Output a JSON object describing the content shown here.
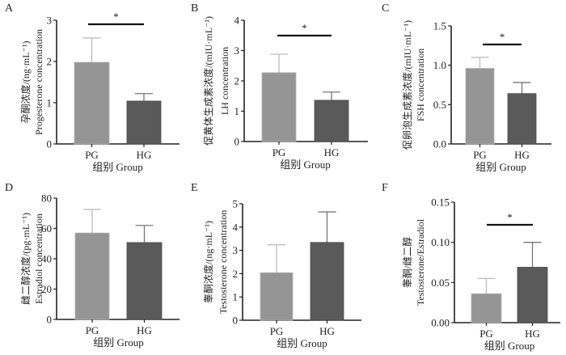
{
  "colors": {
    "PG": "#959595",
    "HG": "#5a5a5a",
    "axis": "#222222",
    "error_PG": "#bdbdbd",
    "error_HG": "#777777"
  },
  "chart_data": [
    {
      "panel": "A",
      "type": "bar",
      "categories": [
        "PG",
        "HG"
      ],
      "values": [
        1.98,
        1.04
      ],
      "errors_upper": [
        2.57,
        1.22
      ],
      "ylabel_cn": "孕酮浓度/(ng·mL⁻¹)",
      "ylabel_en": "Progesterone concentration",
      "xlabel": "组别 Group",
      "ylim": [
        0,
        3
      ],
      "yticks": [
        "0",
        "1",
        "2",
        "3"
      ],
      "significance": "*"
    },
    {
      "panel": "B",
      "type": "bar",
      "categories": [
        "PG",
        "HG"
      ],
      "values": [
        2.27,
        1.36
      ],
      "errors_upper": [
        2.88,
        1.63
      ],
      "ylabel_cn": "促黄体生成素浓度/(mIU·mL⁻¹)",
      "ylabel_en": "LH concentration",
      "xlabel": "组别 Group",
      "ylim": [
        0,
        4
      ],
      "yticks": [
        "0",
        "1",
        "2",
        "3",
        "4"
      ],
      "significance": "*"
    },
    {
      "panel": "C",
      "type": "bar",
      "categories": [
        "PG",
        "HG"
      ],
      "values": [
        0.96,
        0.64
      ],
      "errors_upper": [
        1.1,
        0.78
      ],
      "ylabel_cn": "促卵泡生成素浓度/(mIU·mL⁻¹)",
      "ylabel_en": "FSH concentration",
      "xlabel": "组别 Group",
      "ylim": [
        0,
        1.5
      ],
      "yticks": [
        "0.0",
        "0.5",
        "1.0",
        "1.5"
      ],
      "significance": "*"
    },
    {
      "panel": "D",
      "type": "bar",
      "categories": [
        "PG",
        "HG"
      ],
      "values": [
        57,
        50.7
      ],
      "errors_upper": [
        72.5,
        62
      ],
      "ylabel_cn": "雌二醇浓度/(pg·mL⁻¹)",
      "ylabel_en": "Estradiol concentration",
      "xlabel": "组别 Group",
      "ylim": [
        0,
        80
      ],
      "yticks": [
        "0",
        "20",
        "40",
        "60",
        "80"
      ],
      "significance": ""
    },
    {
      "panel": "E",
      "type": "bar",
      "categories": [
        "PG",
        "HG"
      ],
      "values": [
        2.04,
        3.34
      ],
      "errors_upper": [
        3.24,
        4.65
      ],
      "ylabel_cn": "睾酮浓度/(ng·mL⁻¹)",
      "ylabel_en": "Testosterone concentration",
      "xlabel": "组别 Group",
      "ylim": [
        0,
        5
      ],
      "yticks": [
        "0",
        "1",
        "2",
        "3",
        "4",
        "5"
      ],
      "significance": ""
    },
    {
      "panel": "F",
      "type": "bar",
      "categories": [
        "PG",
        "HG"
      ],
      "values": [
        0.036,
        0.069
      ],
      "errors_upper": [
        0.055,
        0.1
      ],
      "ylabel_cn": "睾酮/雌二醇",
      "ylabel_en": "Testosterone/Estradiol",
      "xlabel": "组别 Group",
      "ylim": [
        0,
        0.15
      ],
      "yticks": [
        "0.00",
        "0.05",
        "0.10",
        "0.15"
      ],
      "significance": "*"
    }
  ]
}
